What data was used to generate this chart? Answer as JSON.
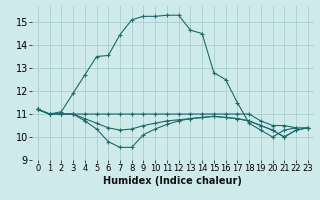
{
  "xlabel": "Humidex (Indice chaleur)",
  "bg_color": "#ceeaea",
  "grid_color": "#aacece",
  "line_color": "#1a6b6b",
  "xlim": [
    -0.5,
    23.5
  ],
  "ylim": [
    9.0,
    15.7
  ],
  "yticks": [
    9,
    10,
    11,
    12,
    13,
    14,
    15
  ],
  "xticks": [
    0,
    1,
    2,
    3,
    4,
    5,
    6,
    7,
    8,
    9,
    10,
    11,
    12,
    13,
    14,
    15,
    16,
    17,
    18,
    19,
    20,
    21,
    22,
    23
  ],
  "series": [
    [
      11.2,
      11.0,
      11.0,
      11.0,
      11.0,
      11.0,
      11.0,
      11.0,
      11.0,
      11.0,
      11.0,
      11.0,
      11.0,
      11.0,
      11.0,
      11.0,
      11.0,
      11.0,
      11.0,
      10.7,
      10.5,
      10.5,
      10.4,
      10.4
    ],
    [
      11.2,
      11.0,
      11.0,
      11.0,
      10.8,
      10.6,
      10.4,
      10.3,
      10.35,
      10.5,
      10.6,
      10.7,
      10.75,
      10.8,
      10.85,
      10.9,
      10.85,
      10.8,
      10.7,
      10.5,
      10.3,
      10.0,
      10.3,
      10.4
    ],
    [
      11.2,
      11.0,
      11.0,
      11.0,
      10.7,
      10.35,
      9.8,
      9.55,
      9.55,
      10.1,
      10.35,
      10.55,
      10.7,
      10.8,
      10.85,
      10.9,
      10.85,
      10.8,
      10.7,
      10.5,
      10.3,
      10.0,
      10.3,
      10.4
    ],
    [
      11.2,
      11.0,
      11.1,
      11.9,
      12.7,
      13.5,
      13.55,
      14.45,
      15.1,
      15.25,
      15.25,
      15.3,
      15.3,
      14.65,
      14.5,
      12.8,
      12.5,
      11.5,
      10.6,
      10.3,
      10.0,
      10.3,
      10.4,
      null
    ]
  ]
}
